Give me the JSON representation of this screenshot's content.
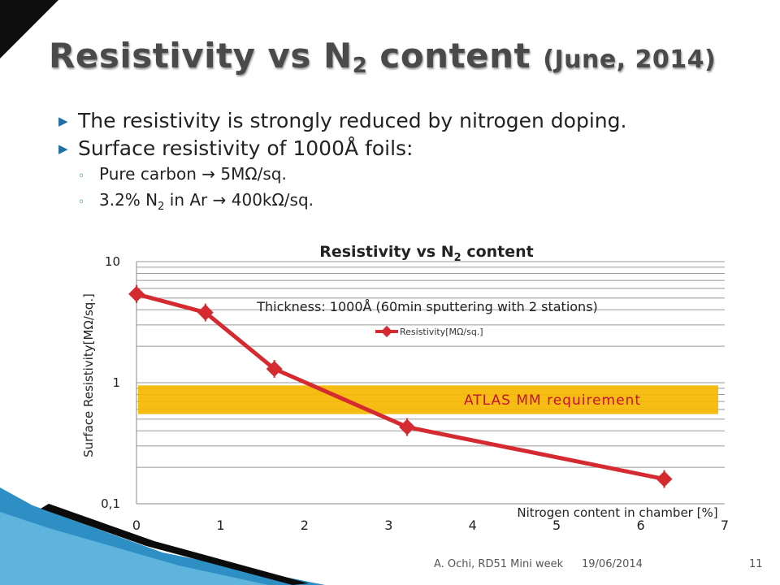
{
  "slide": {
    "title_main": "Resistivity vs N",
    "title_sub": "2",
    "title_rest": " content ",
    "title_date": "(June, 2014)",
    "page_number": "11",
    "footer_author": "A. Ochi,  RD51 Mini week",
    "footer_date": "19/06/2014"
  },
  "bullets": {
    "b1": "The resistivity is strongly reduced by nitrogen doping.",
    "b2": "Surface resistivity of 1000Å foils:",
    "s1": "Pure carbon → 5MΩ/sq.",
    "s2_a": "3.2% N",
    "s2_sub": "2",
    "s2_b": " in Ar → 400kΩ/sq.",
    "bullet_marker": "▶",
    "sub_marker": "◦"
  },
  "colors": {
    "title": "#4a4a4a",
    "bullet_marker": "#1e6fa7",
    "series": "#d42a30",
    "band": "#f5b800",
    "band_text": "#c8102e",
    "grid": "#9a9a9a"
  },
  "chart_data": {
    "type": "line",
    "title_main": "Resistivity vs N",
    "title_sub": "2",
    "title_rest": " content",
    "subtitle": "Thickness: 1000Å (60min sputtering with 2 stations)",
    "xlabel": "Nitrogen content in chamber [%]",
    "ylabel": "Surface Resistivity[MΩ/sq.]",
    "xlim": [
      0,
      7
    ],
    "ylim": [
      0.1,
      10
    ],
    "y_scale": "log",
    "x_ticks": [
      "0",
      "1",
      "2",
      "3",
      "4",
      "5",
      "6",
      "7"
    ],
    "y_ticks": [
      "10",
      "1",
      "0,1"
    ],
    "grid": true,
    "legend_position": "top-center",
    "series": [
      {
        "name": "Resistivity[MΩ/sq.]",
        "x": [
          0,
          0.82,
          1.64,
          3.22,
          6.28
        ],
        "y": [
          5.4,
          3.8,
          1.3,
          0.43,
          0.16
        ]
      }
    ],
    "annotation": {
      "label": "ATLAS MM requirement",
      "y_low": 0.55,
      "y_high": 0.95
    }
  }
}
